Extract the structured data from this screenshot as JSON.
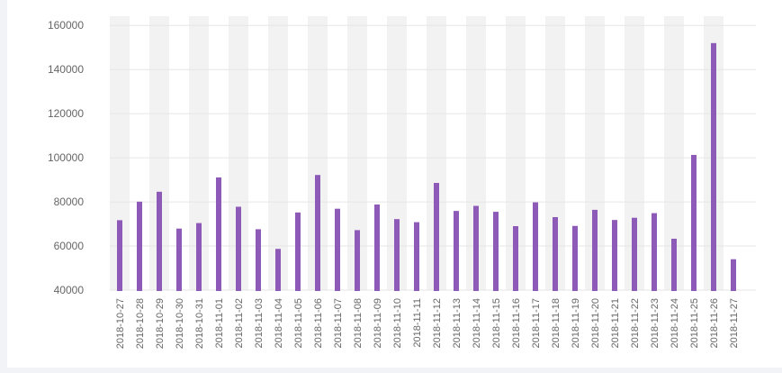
{
  "chart_data": {
    "type": "bar",
    "title": "",
    "xlabel": "",
    "ylabel": "",
    "categories": [
      "2018-10-27",
      "2018-10-28",
      "2018-10-29",
      "2018-10-30",
      "2018-10-31",
      "2018-11-01",
      "2018-11-02",
      "2018-11-03",
      "2018-11-04",
      "2018-11-05",
      "2018-11-06",
      "2018-11-07",
      "2018-11-08",
      "2018-11-09",
      "2018-11-10",
      "2018-11-11",
      "2018-11-12",
      "2018-11-13",
      "2018-11-14",
      "2018-11-15",
      "2018-11-16",
      "2018-11-17",
      "2018-11-18",
      "2018-11-19",
      "2018-11-20",
      "2018-11-21",
      "2018-11-22",
      "2018-11-23",
      "2018-11-24",
      "2018-11-25",
      "2018-11-26",
      "2018-11-27"
    ],
    "values": [
      71700,
      80100,
      84600,
      67900,
      70400,
      91100,
      77800,
      67600,
      58700,
      75200,
      92200,
      76900,
      67200,
      78800,
      72200,
      70800,
      88600,
      75900,
      78200,
      75500,
      69000,
      79800,
      73100,
      69100,
      76400,
      71800,
      72800,
      74900,
      63300,
      101300,
      152000,
      54000
    ],
    "ylim": [
      40000,
      165000
    ],
    "yticks": [
      40000,
      60000,
      80000,
      100000,
      120000,
      140000,
      160000
    ],
    "grid": true,
    "bar_color": "#8e5ab8",
    "band_color": "#f2f2f2",
    "gridline_color": "#e6e6e6"
  }
}
